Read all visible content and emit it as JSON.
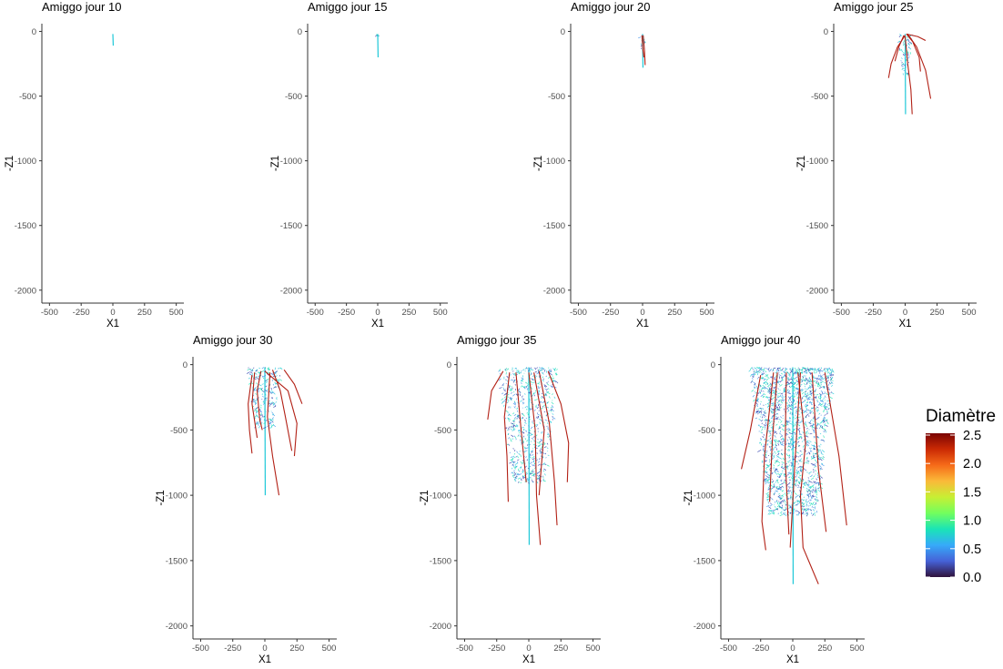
{
  "chart_data": [
    {
      "type": "scatter",
      "title": "Amiggo jour 10",
      "xlabel": "X1",
      "ylabel": "-Z1",
      "xlim": [
        -560,
        560
      ],
      "ylim": [
        -2100,
        60
      ],
      "xticks": [
        -500,
        -250,
        0,
        250,
        500
      ],
      "yticks": [
        0,
        -500,
        -1000,
        -1500,
        -2000
      ],
      "grid": false,
      "root_depth": -110,
      "main_roots": [],
      "lateral_spread": 0,
      "lateral_depth": 0,
      "lateral_count": 0
    },
    {
      "type": "scatter",
      "title": "Amiggo jour 15",
      "xlabel": "X1",
      "ylabel": "-Z1",
      "xlim": [
        -560,
        560
      ],
      "ylim": [
        -2100,
        60
      ],
      "xticks": [
        -500,
        -250,
        0,
        250,
        500
      ],
      "yticks": [
        0,
        -500,
        -1000,
        -1500,
        -2000
      ],
      "grid": false,
      "root_depth": -200,
      "main_roots": [],
      "lateral_spread": 20,
      "lateral_depth": -30,
      "lateral_count": 4
    },
    {
      "type": "scatter",
      "title": "Amiggo jour 20",
      "xlabel": "X1",
      "ylabel": "-Z1",
      "xlim": [
        -560,
        560
      ],
      "ylim": [
        -2100,
        60
      ],
      "xticks": [
        -500,
        -250,
        0,
        250,
        500
      ],
      "yticks": [
        0,
        -500,
        -1000,
        -1500,
        -2000
      ],
      "grid": false,
      "root_depth": -280,
      "main_roots": [
        {
          "x": [
            5,
            15,
            20
          ],
          "z": [
            -30,
            -150,
            -260
          ]
        },
        {
          "x": [
            -5,
            0,
            10
          ],
          "z": [
            -30,
            -120,
            -200
          ]
        }
      ],
      "lateral_spread": 20,
      "lateral_depth": -160,
      "lateral_count": 14
    },
    {
      "type": "scatter",
      "title": "Amiggo jour 25",
      "xlabel": "X1",
      "ylabel": "-Z1",
      "xlim": [
        -560,
        560
      ],
      "ylim": [
        -2100,
        60
      ],
      "xticks": [
        -500,
        -250,
        0,
        250,
        500
      ],
      "yticks": [
        0,
        -500,
        -1000,
        -1500,
        -2000
      ],
      "grid": false,
      "root_depth": -640,
      "main_roots": [
        {
          "x": [
            0,
            -60,
            -110,
            -130
          ],
          "z": [
            -30,
            -120,
            -250,
            -360
          ]
        },
        {
          "x": [
            10,
            60,
            110,
            120
          ],
          "z": [
            -20,
            -80,
            -200,
            -310
          ]
        },
        {
          "x": [
            20,
            90,
            160,
            200
          ],
          "z": [
            -20,
            -120,
            -300,
            -520
          ]
        },
        {
          "x": [
            0,
            20,
            45,
            55
          ],
          "z": [
            -40,
            -250,
            -450,
            -640
          ]
        },
        {
          "x": [
            -10,
            -50,
            -80
          ],
          "z": [
            -30,
            -120,
            -230
          ]
        },
        {
          "x": [
            10,
            100,
            160
          ],
          "z": [
            -20,
            -40,
            -70
          ]
        }
      ],
      "lateral_spread": 55,
      "lateral_depth": -330,
      "lateral_count": 70
    },
    {
      "type": "scatter",
      "title": "Amiggo jour 30",
      "xlabel": "X1",
      "ylabel": "-Z1",
      "xlim": [
        -560,
        560
      ],
      "ylim": [
        -2100,
        60
      ],
      "xticks": [
        -500,
        -250,
        0,
        250,
        500
      ],
      "yticks": [
        0,
        -500,
        -1000,
        -1500,
        -2000
      ],
      "grid": false,
      "root_depth": -1000,
      "main_roots": [
        {
          "x": [
            -100,
            -130,
            -120,
            -100
          ],
          "z": [
            -80,
            -300,
            -500,
            -680
          ]
        },
        {
          "x": [
            -30,
            -60,
            -40,
            -20
          ],
          "z": [
            -50,
            -200,
            -420,
            -500
          ]
        },
        {
          "x": [
            60,
            120,
            160,
            210
          ],
          "z": [
            -40,
            -200,
            -400,
            -660
          ]
        },
        {
          "x": [
            40,
            20,
            60,
            110
          ],
          "z": [
            -60,
            -400,
            -700,
            -1000
          ]
        },
        {
          "x": [
            150,
            230,
            290
          ],
          "z": [
            -40,
            -150,
            -300
          ]
        },
        {
          "x": [
            0,
            180,
            250,
            230
          ],
          "z": [
            -50,
            -200,
            -450,
            -700
          ]
        },
        {
          "x": [
            -80,
            -100,
            -60
          ],
          "z": [
            -60,
            -300,
            -560
          ]
        }
      ],
      "lateral_spread": 130,
      "lateral_depth": -480,
      "lateral_count": 240
    },
    {
      "type": "scatter",
      "title": "Amiggo jour 35",
      "xlabel": "X1",
      "ylabel": "-Z1",
      "xlim": [
        -560,
        560
      ],
      "ylim": [
        -2100,
        60
      ],
      "xticks": [
        -500,
        -250,
        0,
        250,
        500
      ],
      "yticks": [
        0,
        -500,
        -1000,
        -1500,
        -2000
      ],
      "grid": false,
      "root_depth": -1380,
      "main_roots": [
        {
          "x": [
            -200,
            -290,
            -320
          ],
          "z": [
            -50,
            -200,
            -420
          ]
        },
        {
          "x": [
            -150,
            -190,
            -170,
            -160
          ],
          "z": [
            -60,
            -400,
            -700,
            -1050
          ]
        },
        {
          "x": [
            0,
            50,
            60,
            90
          ],
          "z": [
            -60,
            -500,
            -1000,
            -1380
          ]
        },
        {
          "x": [
            80,
            160,
            200,
            220
          ],
          "z": [
            -50,
            -450,
            -900,
            -1230
          ]
        },
        {
          "x": [
            150,
            250,
            310,
            300
          ],
          "z": [
            -50,
            -300,
            -600,
            -900
          ]
        },
        {
          "x": [
            -100,
            -60,
            -20
          ],
          "z": [
            -60,
            -500,
            -900
          ]
        },
        {
          "x": [
            40,
            120,
            80
          ],
          "z": [
            -60,
            -500,
            -1000
          ]
        }
      ],
      "lateral_spread": 230,
      "lateral_depth": -900,
      "lateral_count": 700
    },
    {
      "type": "scatter",
      "title": "Amiggo jour 40",
      "xlabel": "X1",
      "ylabel": "-Z1",
      "xlim": [
        -560,
        560
      ],
      "ylim": [
        -2100,
        60
      ],
      "xticks": [
        -500,
        -250,
        0,
        250,
        500
      ],
      "yticks": [
        0,
        -500,
        -1000,
        -1500,
        -2000
      ],
      "grid": false,
      "root_depth": -1680,
      "main_roots": [
        {
          "x": [
            -250,
            -330,
            -400
          ],
          "z": [
            -80,
            -500,
            -800
          ]
        },
        {
          "x": [
            -150,
            -220,
            -240,
            -210
          ],
          "z": [
            -60,
            -700,
            -1200,
            -1420
          ]
        },
        {
          "x": [
            -50,
            -60,
            -30
          ],
          "z": [
            -60,
            -700,
            -1300
          ]
        },
        {
          "x": [
            40,
            100,
            60,
            80,
            200
          ],
          "z": [
            -60,
            -600,
            -1000,
            -1400,
            -1680
          ]
        },
        {
          "x": [
            150,
            200,
            260
          ],
          "z": [
            -60,
            -800,
            -1280
          ]
        },
        {
          "x": [
            250,
            360,
            420
          ],
          "z": [
            -60,
            -700,
            -1230
          ]
        },
        {
          "x": [
            -120,
            -160,
            -180
          ],
          "z": [
            -60,
            -600,
            -1050
          ]
        },
        {
          "x": [
            60,
            20,
            -20
          ],
          "z": [
            -60,
            -700,
            -1400
          ]
        }
      ],
      "lateral_spread": 330,
      "lateral_depth": -1150,
      "lateral_count": 1900
    }
  ],
  "legend": {
    "title": "Diamètre",
    "ticks": [
      "2.5",
      "2.0",
      "1.5",
      "1.0",
      "0.5",
      "0.0"
    ],
    "colors": [
      "#30123B",
      "#4662D7",
      "#36AAF9",
      "#1AE4B6",
      "#72FE5E",
      "#C7EF34",
      "#FABA39",
      "#F66B19",
      "#CB2A04",
      "#7A0403"
    ]
  },
  "colors": {
    "main_root": "#B22015",
    "lateral_a": "#3B8FE8",
    "lateral_b": "#1EC8D8",
    "lateral_c": "#2B3BAA",
    "lateral_d": "#17E0B0"
  }
}
